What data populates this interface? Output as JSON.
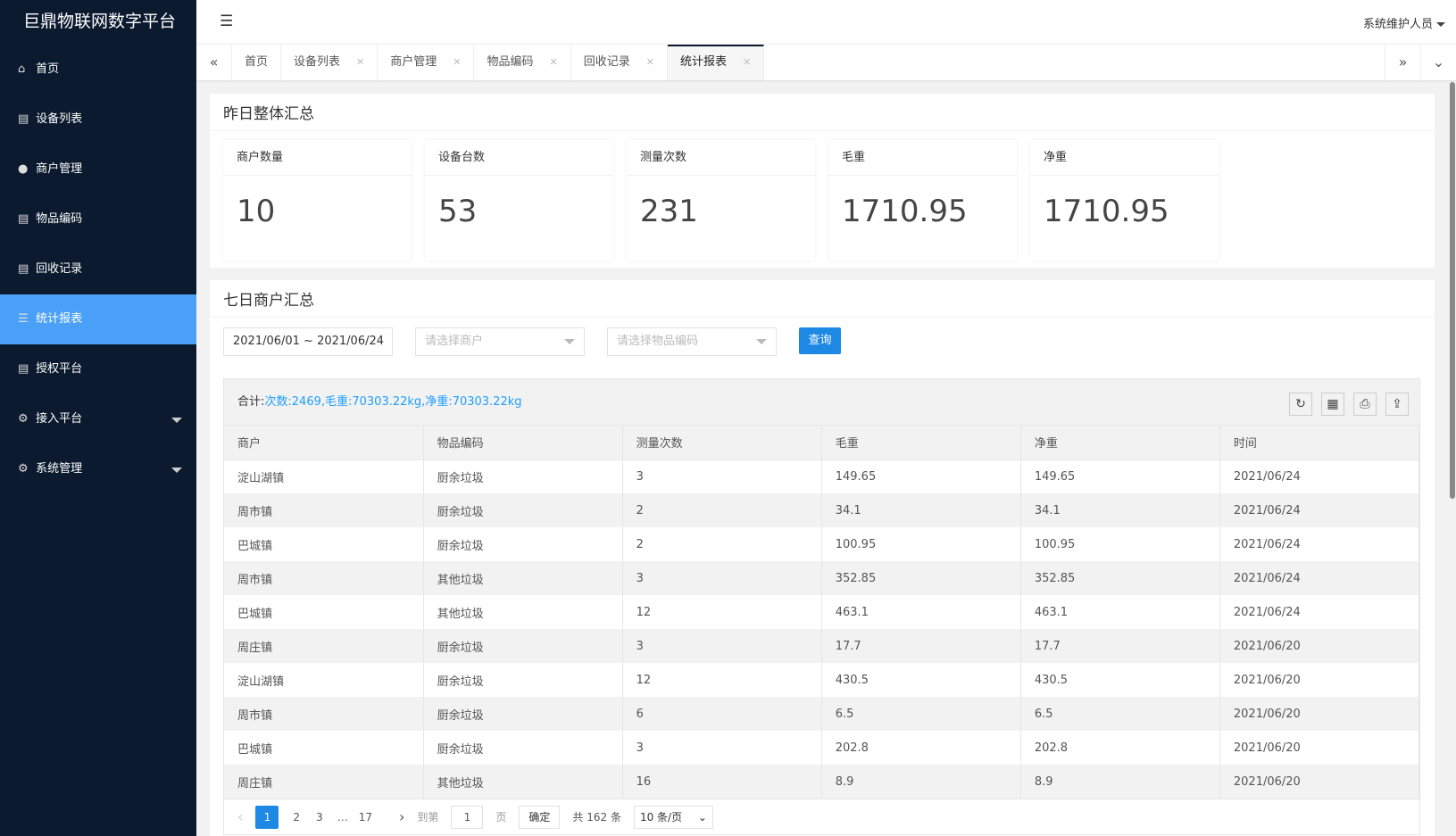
{
  "app": {
    "title": "巨鼎物联网数字平台",
    "user": "系统维护人员"
  },
  "sidebar": {
    "items": [
      {
        "label": "首页",
        "icon": "home-icon"
      },
      {
        "label": "设备列表",
        "icon": "list-icon"
      },
      {
        "label": "商户管理",
        "icon": "user-icon"
      },
      {
        "label": "物品编码",
        "icon": "list-icon"
      },
      {
        "label": "回收记录",
        "icon": "list-icon"
      },
      {
        "label": "统计报表",
        "icon": "menu-icon",
        "active": true
      },
      {
        "label": "授权平台",
        "icon": "list-icon"
      },
      {
        "label": "接入平台",
        "icon": "gear-icon",
        "expandable": true
      },
      {
        "label": "系统管理",
        "icon": "gear-icon",
        "expandable": true
      }
    ]
  },
  "tabs": [
    {
      "label": "首页"
    },
    {
      "label": "设备列表"
    },
    {
      "label": "商户管理"
    },
    {
      "label": "物品编码"
    },
    {
      "label": "回收记录"
    },
    {
      "label": "统计报表",
      "active": true
    }
  ],
  "summary": {
    "title": "昨日整体汇总",
    "stats": [
      {
        "label": "商户数量",
        "value": "10"
      },
      {
        "label": "设备台数",
        "value": "53"
      },
      {
        "label": "测量次数",
        "value": "231"
      },
      {
        "label": "毛重",
        "value": "1710.95"
      },
      {
        "label": "净重",
        "value": "1710.95"
      }
    ]
  },
  "weekly": {
    "title": "七日商户汇总",
    "filters": {
      "date_range": "2021/06/01 ~ 2021/06/24",
      "merchant_placeholder": "请选择商户",
      "item_placeholder": "请选择物品编码",
      "query": "查询"
    },
    "total_label": "合计:",
    "total_value": "次数:2469,毛重:70303.22kg,净重:70303.22kg",
    "columns": [
      "商户",
      "物品编码",
      "测量次数",
      "毛重",
      "净重",
      "时间"
    ],
    "rows": [
      [
        "淀山湖镇",
        "厨余垃圾",
        "3",
        "149.65",
        "149.65",
        "2021/06/24"
      ],
      [
        "周市镇",
        "厨余垃圾",
        "2",
        "34.1",
        "34.1",
        "2021/06/24"
      ],
      [
        "巴城镇",
        "厨余垃圾",
        "2",
        "100.95",
        "100.95",
        "2021/06/24"
      ],
      [
        "周市镇",
        "其他垃圾",
        "3",
        "352.85",
        "352.85",
        "2021/06/24"
      ],
      [
        "巴城镇",
        "其他垃圾",
        "12",
        "463.1",
        "463.1",
        "2021/06/24"
      ],
      [
        "周庄镇",
        "厨余垃圾",
        "3",
        "17.7",
        "17.7",
        "2021/06/20"
      ],
      [
        "淀山湖镇",
        "厨余垃圾",
        "12",
        "430.5",
        "430.5",
        "2021/06/20"
      ],
      [
        "周市镇",
        "厨余垃圾",
        "6",
        "6.5",
        "6.5",
        "2021/06/20"
      ],
      [
        "巴城镇",
        "厨余垃圾",
        "3",
        "202.8",
        "202.8",
        "2021/06/20"
      ],
      [
        "周庄镇",
        "其他垃圾",
        "16",
        "8.9",
        "8.9",
        "2021/06/20"
      ]
    ],
    "pager": {
      "pages": [
        "1",
        "2",
        "3",
        "…",
        "17"
      ],
      "goto_label": "到第",
      "goto_value": "1",
      "page_unit": "页",
      "confirm": "确定",
      "total": "共 162 条",
      "page_size": "10 条/页"
    }
  }
}
